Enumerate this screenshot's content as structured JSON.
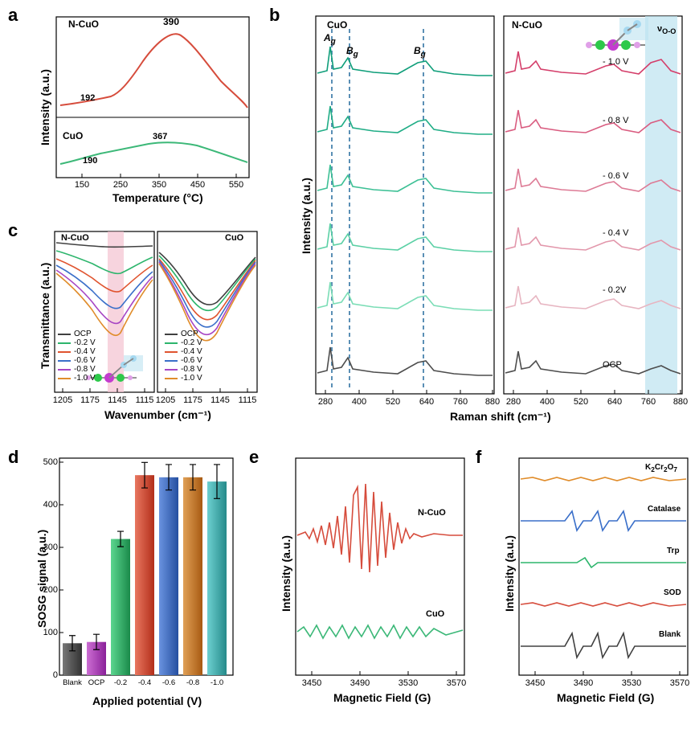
{
  "panels": {
    "a": "a",
    "b": "b",
    "c": "c",
    "d": "d",
    "e": "e",
    "f": "f"
  },
  "a": {
    "ylabel": "Intensity (a.u.)",
    "xlabel": "Temperature (°C)",
    "xticks": [
      "150",
      "250",
      "350",
      "450",
      "550"
    ],
    "traces": {
      "ncuo": {
        "label": "N-CuO",
        "color": "#d64c3c",
        "peaks": {
          "p1": "192",
          "p2": "390"
        }
      },
      "cuo": {
        "label": "CuO",
        "color": "#3cb878",
        "peaks": {
          "p1": "190",
          "p2": "367"
        }
      }
    }
  },
  "b": {
    "ylabel": "Intensity (a.u.)",
    "xlabel": "Raman shift (cm⁻¹)",
    "xticks": [
      "280",
      "400",
      "520",
      "640",
      "760",
      "880"
    ],
    "left_title": "CuO",
    "right_title": "N-CuO",
    "modes": {
      "ag": "Aₘ",
      "bg1": "Bₘ",
      "bg2": "Bₘ"
    },
    "voo": "νₒ₋ₒ",
    "highlight_color": "#bce3f0",
    "legend_potentials": [
      "- 1.0 V",
      "- 0.8 V",
      "- 0.6 V",
      "- 0.4 V",
      "- 0.2V",
      "OCP"
    ],
    "cuo_colors": [
      "#0f9e7a",
      "#20ad86",
      "#3dc095",
      "#5bd0a5",
      "#7bddb6",
      "#4d4d4d"
    ],
    "ncuo_colors": [
      "#d43e6a",
      "#d95c80",
      "#dd7a95",
      "#e297ab",
      "#e7b5c1",
      "#4d4d4d"
    ],
    "dash_color": "#5a8fb5"
  },
  "c": {
    "ylabel": "Transmittance (a.u.)",
    "xlabel": "Wavenumber (cm⁻¹)",
    "xticks": [
      "1205",
      "1175",
      "1145",
      "1115"
    ],
    "left_title": "N-CuO",
    "right_title": "CuO",
    "highlight_color": "#f4c2d0",
    "legend": [
      {
        "label": "OCP",
        "color": "#404040"
      },
      {
        "label": "-0.2 V",
        "color": "#2db56c"
      },
      {
        "label": "-0.4 V",
        "color": "#e0542f"
      },
      {
        "label": "-0.6 V",
        "color": "#3a6fc9"
      },
      {
        "label": "-0.8 V",
        "color": "#a746c4"
      },
      {
        "label": "-1.0 V",
        "color": "#e08c2a"
      }
    ]
  },
  "d": {
    "ylabel": "SOSG signal (a.u.)",
    "xlabel": "Applied potential (V)",
    "yticks": [
      "0",
      "100",
      "200",
      "300",
      "400",
      "500"
    ],
    "categories": [
      "Blank",
      "OCP",
      "-0.2",
      "-0.4",
      "-0.6",
      "-0.8",
      "-1.0"
    ],
    "values": [
      75,
      78,
      320,
      470,
      465,
      465,
      455
    ],
    "errs": [
      18,
      18,
      18,
      30,
      30,
      30,
      40
    ],
    "colors": [
      "#555555",
      "#aa3dbb",
      "#2db56c",
      "#d64c3c",
      "#3a6fc9",
      "#cd7a2a",
      "#3fb5b5"
    ],
    "ylim": [
      0,
      510
    ]
  },
  "e": {
    "ylabel": "Intensity (a.u.)",
    "xlabel": "Magnetic Field (G)",
    "xticks": [
      "3450",
      "3490",
      "3530",
      "3570"
    ],
    "traces": {
      "ncuo": {
        "label": "N-CuO",
        "color": "#d64c3c"
      },
      "cuo": {
        "label": "CuO",
        "color": "#3cb878"
      }
    }
  },
  "f": {
    "ylabel": "Intensity (a.u.)",
    "xlabel": "Magnetic Field (G)",
    "xticks": [
      "3450",
      "3490",
      "3530",
      "3570"
    ],
    "traces": [
      {
        "label": "K₂Cr₂O₇",
        "color": "#e08c2a"
      },
      {
        "label": "Catalase",
        "color": "#3a6fc9"
      },
      {
        "label": "Trp",
        "color": "#2db56c"
      },
      {
        "label": "SOD",
        "color": "#d64c3c"
      },
      {
        "label": "Blank",
        "color": "#404040"
      }
    ]
  },
  "molecule_colors": {
    "cu": "#c33ccf",
    "n": "#2dc94a",
    "o": "#a5d8f0",
    "bond": "#888"
  }
}
